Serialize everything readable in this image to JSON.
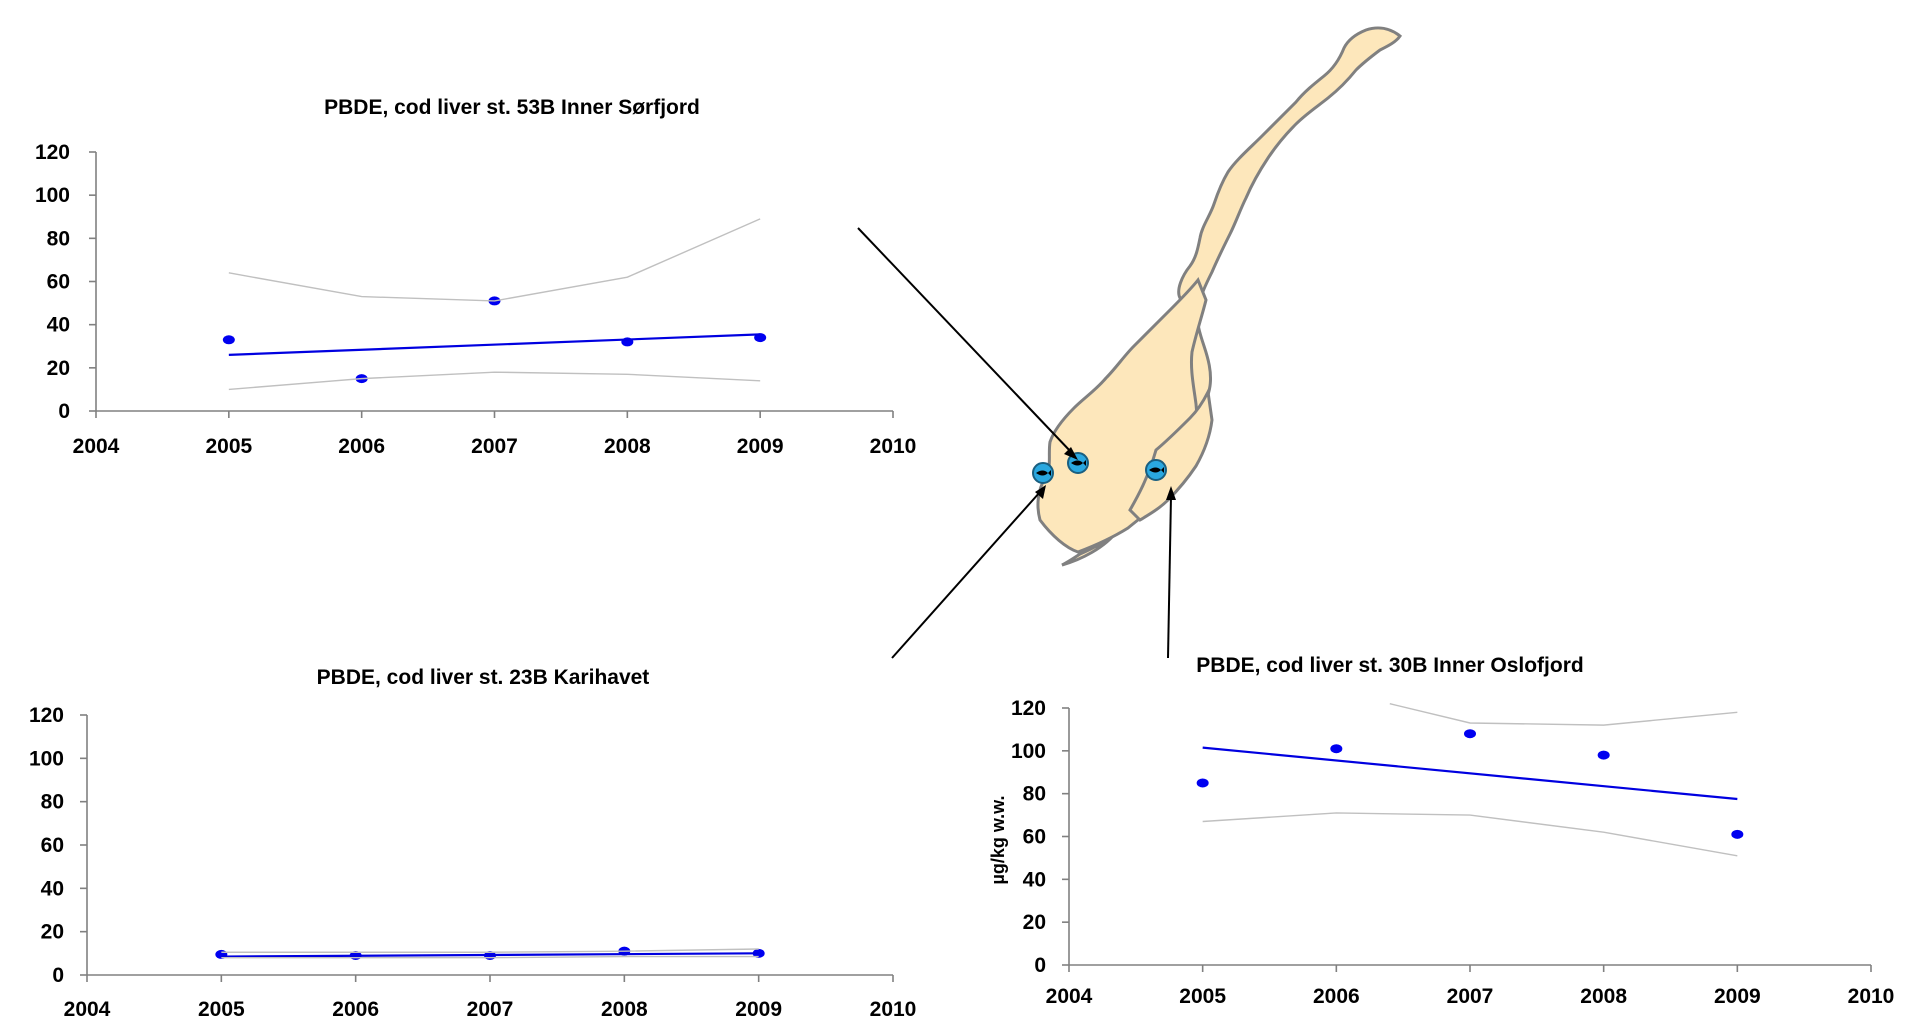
{
  "chart_data": [
    {
      "type": "line",
      "title": "PBDE, cod liver st. 53B Inner Sørfjord",
      "xlim": [
        2004,
        2010
      ],
      "ylim": [
        0,
        120
      ],
      "xticks": [
        2004,
        2005,
        2006,
        2007,
        2008,
        2009,
        2010
      ],
      "yticks": [
        0,
        20,
        40,
        60,
        80,
        100,
        120
      ],
      "ylabel": "",
      "series": [
        {
          "kind": "points",
          "x": [
            2005,
            2006,
            2007,
            2008,
            2009
          ],
          "y": [
            33,
            15,
            51,
            32,
            34
          ]
        },
        {
          "kind": "trend",
          "x": [
            2005,
            2009
          ],
          "y": [
            26,
            35.5
          ]
        },
        {
          "kind": "upper",
          "x": [
            2005,
            2006,
            2007,
            2008,
            2009
          ],
          "y": [
            64,
            53,
            51,
            62,
            89
          ]
        },
        {
          "kind": "lower",
          "x": [
            2005,
            2006,
            2007,
            2008,
            2009
          ],
          "y": [
            10,
            15,
            18,
            17,
            14
          ]
        }
      ]
    },
    {
      "type": "line",
      "title": "PBDE, cod liver st. 23B Karihavet",
      "xlim": [
        2004,
        2010
      ],
      "ylim": [
        0,
        120
      ],
      "xticks": [
        2004,
        2005,
        2006,
        2007,
        2008,
        2009,
        2010
      ],
      "yticks": [
        0,
        20,
        40,
        60,
        80,
        100,
        120
      ],
      "ylabel": "",
      "series": [
        {
          "kind": "points",
          "x": [
            2005,
            2006,
            2007,
            2008,
            2009
          ],
          "y": [
            9.5,
            9,
            9,
            11,
            10
          ]
        },
        {
          "kind": "trend",
          "x": [
            2005,
            2009
          ],
          "y": [
            8.5,
            10
          ]
        },
        {
          "kind": "upper",
          "x": [
            2005,
            2006,
            2007,
            2008,
            2009
          ],
          "y": [
            10.5,
            10.5,
            10.5,
            11,
            12
          ]
        },
        {
          "kind": "lower",
          "x": [
            2005,
            2006,
            2007,
            2008,
            2009
          ],
          "y": [
            8,
            8,
            8,
            8.5,
            8.5
          ]
        }
      ]
    },
    {
      "type": "line",
      "title": "PBDE, cod liver st. 30B Inner Oslofjord",
      "xlim": [
        2004,
        2010
      ],
      "ylim": [
        0,
        120
      ],
      "xticks": [
        2004,
        2005,
        2006,
        2007,
        2008,
        2009,
        2010
      ],
      "yticks": [
        0,
        20,
        40,
        60,
        80,
        100,
        120
      ],
      "ylabel": "µg/kg w.w.",
      "series": [
        {
          "kind": "points",
          "x": [
            2005,
            2006,
            2007,
            2008,
            2009
          ],
          "y": [
            85,
            101,
            108,
            98,
            61
          ]
        },
        {
          "kind": "trend",
          "x": [
            2005,
            2009
          ],
          "y": [
            101.5,
            77.5
          ]
        },
        {
          "kind": "upper",
          "x": [
            2006.4,
            2007,
            2008,
            2009
          ],
          "y": [
            122,
            113,
            112,
            118
          ]
        },
        {
          "kind": "lower",
          "x": [
            2005,
            2006,
            2007,
            2008,
            2009
          ],
          "y": [
            67,
            71,
            70,
            62,
            51
          ]
        }
      ]
    }
  ],
  "map": {
    "land_color": "#fde7bb",
    "coast_color": "#808080",
    "marker_color": "#2aa8e0",
    "marker_icon": "fish-icon",
    "stations": [
      "53B",
      "23B",
      "30B"
    ]
  }
}
